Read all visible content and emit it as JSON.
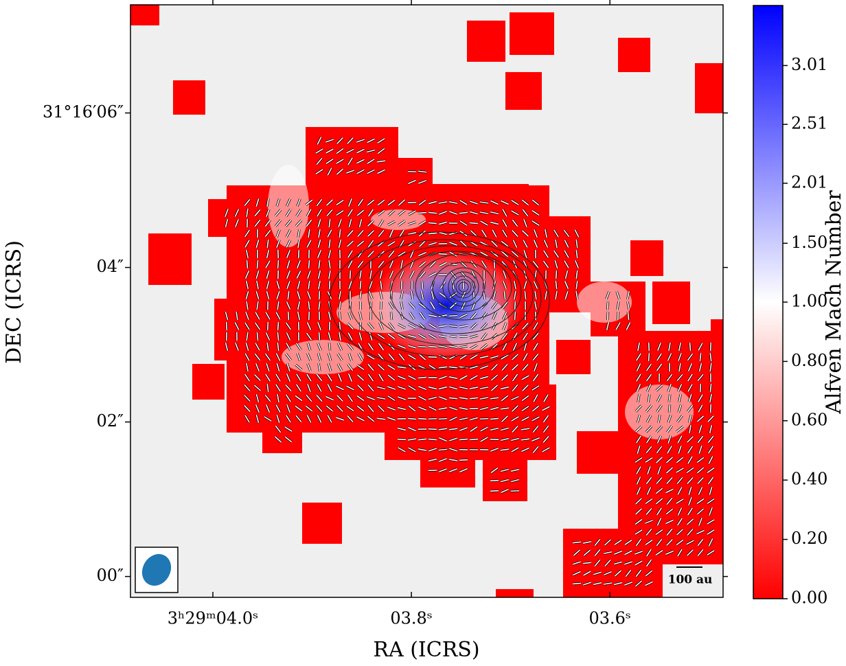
{
  "chart_data": {
    "type": "map",
    "xlabel": "RA (ICRS)",
    "ylabel": "DEC (ICRS)",
    "colorbar_label": "Alfven Mach Number",
    "xlim": [
      4.083,
      3.486
    ],
    "xticks": [
      {
        "value": 4.0,
        "label": "3ʰ29ᵐ04.0ˢ"
      },
      {
        "value": 3.8,
        "label": "03.8ˢ"
      },
      {
        "value": 3.6,
        "label": "03.6ˢ"
      }
    ],
    "ylim": [
      -0.27,
      7.4
    ],
    "yticks": [
      {
        "value": 6,
        "label": "31°16′06″"
      },
      {
        "value": 4,
        "label": "04″"
      },
      {
        "value": 2,
        "label": "02″"
      },
      {
        "value": 0,
        "label": "00″"
      }
    ],
    "clim": [
      0,
      3.52
    ],
    "ccenter": 1.0,
    "colormap": [
      "#ff0000",
      "#ffffff",
      "#0000ff"
    ],
    "cticks": [
      {
        "value": 0,
        "label": "0.00"
      },
      {
        "value": 0.2,
        "label": "0.20"
      },
      {
        "value": 0.4,
        "label": "0.40"
      },
      {
        "value": 0.6,
        "label": "0.60"
      },
      {
        "value": 0.8,
        "label": "0.80"
      },
      {
        "value": 1.0,
        "label": "1.00"
      },
      {
        "value": 1.5,
        "label": "1.50"
      },
      {
        "value": 2.01,
        "label": "2.01"
      },
      {
        "value": 2.51,
        "label": "2.51"
      },
      {
        "value": 3.01,
        "label": "3.01"
      }
    ],
    "scalebar_label": "100 au",
    "beam_color": "#1f77b4"
  }
}
